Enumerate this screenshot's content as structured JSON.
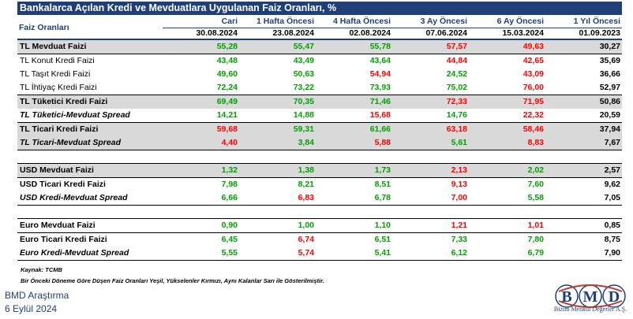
{
  "title": "Bankalarca Açılan Kredi ve Mevduatlara Uygulanan Faiz Oranları, %",
  "header": {
    "label": "Faiz Oranları",
    "columns": [
      "Cari",
      "1 Hafta Öncesi",
      "4 Hafta Öncesi",
      "3 Ay Öncesi",
      "6 Ay Öncesi",
      "1 Yıl Öncesi"
    ],
    "dates": [
      "30.08.2024",
      "23.08.2024",
      "02.08.2024",
      "07.06.2024",
      "15.03.2024",
      "01.09.2023"
    ]
  },
  "rows": [
    {
      "label": "TL Mevduat Faizi",
      "values": [
        "55,28",
        "55,47",
        "55,78",
        "57,57",
        "49,63",
        "30,27"
      ],
      "colors": [
        "g",
        "g",
        "g",
        "r",
        "r",
        "k"
      ]
    },
    {
      "label": "TL Konut Kredi Faizi",
      "values": [
        "43,48",
        "43,49",
        "43,64",
        "44,84",
        "42,65",
        "35,69"
      ],
      "colors": [
        "g",
        "g",
        "g",
        "r",
        "r",
        "k"
      ]
    },
    {
      "label": "TL Taşıt Kredi Faizi",
      "values": [
        "49,60",
        "50,63",
        "54,94",
        "24,52",
        "43,09",
        "36,66"
      ],
      "colors": [
        "g",
        "g",
        "r",
        "g",
        "r",
        "k"
      ]
    },
    {
      "label": "TL İhtiyaç Kredi Faizi",
      "values": [
        "72,24",
        "73,22",
        "73,93",
        "75,02",
        "76,00",
        "52,97"
      ],
      "colors": [
        "g",
        "g",
        "g",
        "g",
        "r",
        "k"
      ]
    },
    {
      "label": "TL Tüketici Kredi Faizi",
      "values": [
        "69,49",
        "70,35",
        "71,46",
        "72,33",
        "71,95",
        "50,86"
      ],
      "colors": [
        "g",
        "g",
        "g",
        "r",
        "r",
        "k"
      ]
    },
    {
      "label": "TL Tüketici-Mevduat Spread",
      "values": [
        "14,21",
        "14,88",
        "15,68",
        "14,76",
        "22,32",
        "20,59"
      ],
      "colors": [
        "g",
        "g",
        "r",
        "g",
        "r",
        "k"
      ]
    },
    {
      "label": "TL Ticari Kredi Faizi",
      "values": [
        "59,68",
        "59,31",
        "61,66",
        "63,18",
        "58,46",
        "37,94"
      ],
      "colors": [
        "r",
        "g",
        "g",
        "r",
        "r",
        "k"
      ]
    },
    {
      "label": "TL Ticari-Mevduat Spread",
      "values": [
        "4,40",
        "3,84",
        "5,88",
        "5,61",
        "8,83",
        "7,67"
      ],
      "colors": [
        "r",
        "g",
        "r",
        "g",
        "r",
        "k"
      ]
    },
    {
      "label": "USD Mevduat Faizi",
      "values": [
        "1,32",
        "1,38",
        "1,73",
        "2,13",
        "2,02",
        "2,57"
      ],
      "colors": [
        "g",
        "g",
        "g",
        "r",
        "g",
        "k"
      ]
    },
    {
      "label": "USD Ticari Kredi Faizi",
      "values": [
        "7,98",
        "8,21",
        "8,51",
        "9,13",
        "7,60",
        "9,62"
      ],
      "colors": [
        "g",
        "g",
        "g",
        "r",
        "g",
        "k"
      ]
    },
    {
      "label": "USD Kredi-Mevduat Spread",
      "values": [
        "6,66",
        "6,83",
        "6,78",
        "7,00",
        "5,58",
        "7,05"
      ],
      "colors": [
        "g",
        "r",
        "g",
        "r",
        "g",
        "k"
      ]
    },
    {
      "label": "Euro Mevduat Faizi",
      "values": [
        "0,90",
        "1,00",
        "1,10",
        "1,21",
        "1,01",
        "0,85"
      ],
      "colors": [
        "g",
        "g",
        "g",
        "r",
        "r",
        "k"
      ]
    },
    {
      "label": "Euro Ticari Kredi Faizi",
      "values": [
        "6,45",
        "6,74",
        "6,51",
        "7,33",
        "7,80",
        "8,75"
      ],
      "colors": [
        "g",
        "r",
        "g",
        "g",
        "g",
        "k"
      ]
    },
    {
      "label": "Euro Kredi-Mevduat Spread",
      "values": [
        "5,55",
        "5,74",
        "5,41",
        "6,12",
        "6,79",
        "7,90"
      ],
      "colors": [
        "g",
        "r",
        "g",
        "g",
        "g",
        "k"
      ]
    }
  ],
  "source": "Kaynak: TCMB",
  "note": "Bir Önceki Döneme Göre Düşen Faiz Oranları Yeşil, Yükselenler Kırmızı, Aynı Kalanlar Sarı ile Gösterilmiştir.",
  "footer": {
    "title": "BMD Araştırma",
    "date": "6 Eylül 2024"
  },
  "logo": {
    "letters": [
      "B",
      "M",
      "D"
    ],
    "tagline": "Bizim Menkul Değerler A.Ş."
  },
  "colors": {
    "navy": "#1f3f79",
    "green": "#00a000",
    "red": "#ff0000",
    "gray": "#d9d9d9"
  }
}
